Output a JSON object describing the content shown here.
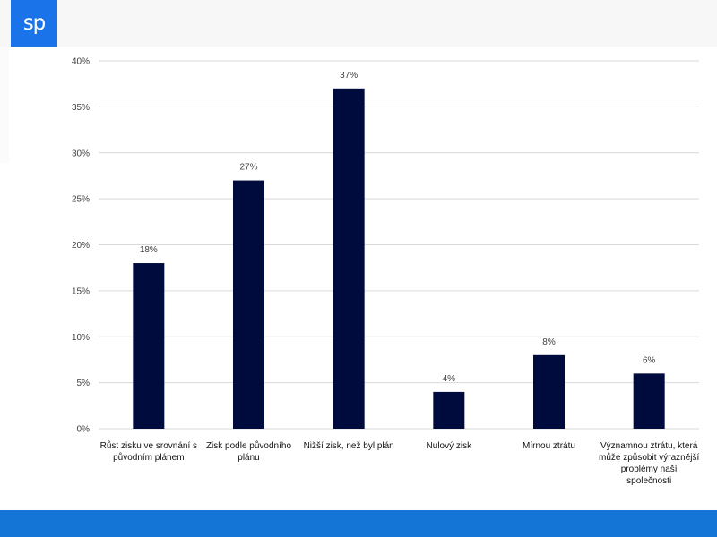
{
  "header": {
    "logo_text": "sp"
  },
  "colors": {
    "bar": "#000b3d",
    "grid": "#d9d9d9",
    "logo_bg": "#1a73e8",
    "bottom_bar": "#1475d6"
  },
  "chart_data": {
    "type": "bar",
    "title": "",
    "xlabel": "",
    "ylabel": "",
    "ylim": [
      0,
      40
    ],
    "y_ticks": [
      "0%",
      "5%",
      "10%",
      "15%",
      "20%",
      "25%",
      "30%",
      "35%",
      "40%"
    ],
    "categories": [
      "Růst zisku ve srovnání s původním plánem",
      "Zisk podle původního plánu",
      "Nižší zisk, než byl plán",
      "Nulový zisk",
      "Mírnou ztrátu",
      "Významnou ztrátu, která může způsobit výraznější problémy naší společnosti"
    ],
    "category_lines": [
      [
        "Růst zisku ve srovnání s",
        "původním plánem"
      ],
      [
        "Zisk podle původního",
        "plánu"
      ],
      [
        "Nižší zisk, než byl plán"
      ],
      [
        "Nulový zisk"
      ],
      [
        "Mírnou ztrátu"
      ],
      [
        "Významnou ztrátu, která",
        "může způsobit výraznější",
        "problémy naší",
        "společnosti"
      ]
    ],
    "values": [
      18,
      27,
      37,
      4,
      8,
      6
    ],
    "data_labels": [
      "18%",
      "27%",
      "37%",
      "4%",
      "8%",
      "6%"
    ],
    "grid": true,
    "legend": "none"
  }
}
